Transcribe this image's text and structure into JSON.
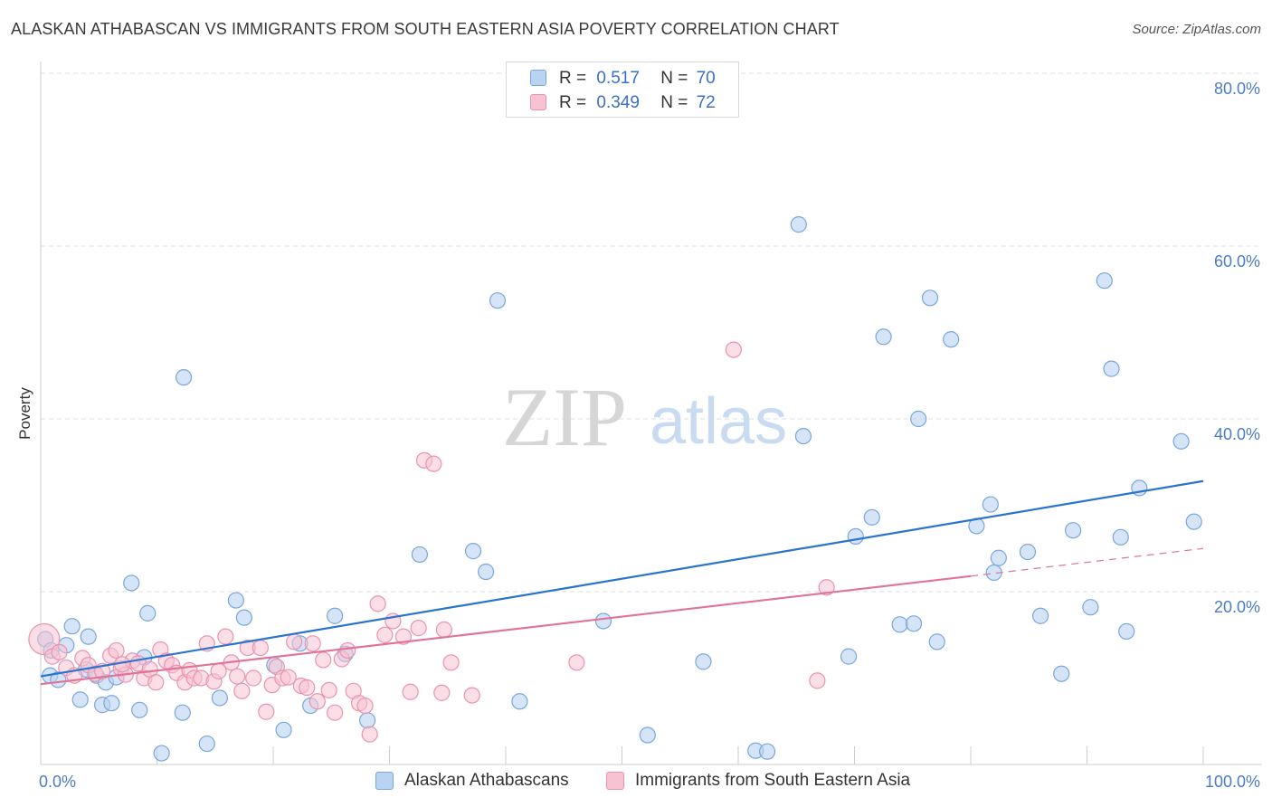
{
  "title": "ALASKAN ATHABASCAN VS IMMIGRANTS FROM SOUTH EASTERN ASIA POVERTY CORRELATION CHART",
  "source": "Source: ZipAtlas.com",
  "watermark": {
    "zip": "ZIP",
    "atlas": "atlas"
  },
  "legend": {
    "rows": [
      {
        "r_label": "R =",
        "r_value": "0.517",
        "n_label": "N =",
        "n_value": "70"
      },
      {
        "r_label": "R =",
        "r_value": "0.349",
        "n_label": "N =",
        "n_value": "72"
      }
    ]
  },
  "bottom_legend": [
    "Alaskan Athabascans",
    "Immigrants from South Eastern Asia"
  ],
  "colors": {
    "blue_fill": "#b9d3f2",
    "blue_stroke": "#7aa6dc",
    "blue_line": "#2a74d0",
    "pink_fill": "#f7c3d2",
    "pink_stroke": "#ea93ae",
    "pink_line": "#e0739a",
    "tick_text": "#4a7cc9",
    "grid": "#dddddd"
  },
  "chart_data": {
    "type": "scatter",
    "title": "ALASKAN ATHABASCAN VS IMMIGRANTS FROM SOUTH EASTERN ASIA POVERTY CORRELATION CHART",
    "xlabel": "",
    "ylabel": "Poverty",
    "xlim": [
      0,
      100
    ],
    "ylim": [
      0,
      82
    ],
    "x_tick_labels": [
      "0.0%",
      "100.0%"
    ],
    "y_ticks": [
      20,
      40,
      60,
      80
    ],
    "y_tick_labels": [
      "20.0%",
      "40.0%",
      "60.0%",
      "80.0%"
    ],
    "grid": true,
    "legend_placement": "top-center",
    "series": [
      {
        "name": "Alaskan Athabascans",
        "r": 0.517,
        "n": 70,
        "trend": {
          "x": [
            0,
            100
          ],
          "y": [
            10.2,
            32.8
          ]
        },
        "points": [
          [
            0.4,
            14.5
          ],
          [
            0.8,
            10.3
          ],
          [
            1.5,
            9.8
          ],
          [
            2.2,
            13.8
          ],
          [
            2.7,
            16.0
          ],
          [
            3.4,
            7.5
          ],
          [
            3.9,
            11.0
          ],
          [
            4.1,
            14.8
          ],
          [
            4.8,
            10.3
          ],
          [
            5.3,
            6.9
          ],
          [
            5.6,
            9.5
          ],
          [
            6.1,
            7.1
          ],
          [
            6.5,
            10.1
          ],
          [
            7.8,
            21.0
          ],
          [
            8.5,
            6.3
          ],
          [
            8.9,
            12.4
          ],
          [
            9.2,
            17.5
          ],
          [
            10.4,
            1.3
          ],
          [
            12.2,
            6.0
          ],
          [
            12.3,
            44.8
          ],
          [
            14.3,
            2.4
          ],
          [
            15.4,
            7.7
          ],
          [
            16.8,
            19.0
          ],
          [
            17.5,
            17.0
          ],
          [
            20.1,
            11.5
          ],
          [
            20.9,
            4.0
          ],
          [
            22.3,
            14.0
          ],
          [
            23.2,
            6.8
          ],
          [
            25.3,
            17.2
          ],
          [
            26.2,
            12.8
          ],
          [
            28.1,
            5.1
          ],
          [
            32.6,
            24.3
          ],
          [
            37.2,
            24.7
          ],
          [
            38.3,
            22.3
          ],
          [
            39.3,
            53.7
          ],
          [
            41.2,
            7.3
          ],
          [
            48.4,
            16.6
          ],
          [
            52.2,
            3.4
          ],
          [
            57.0,
            11.9
          ],
          [
            61.5,
            1.6
          ],
          [
            62.5,
            1.5
          ],
          [
            65.2,
            62.5
          ],
          [
            65.6,
            38.0
          ],
          [
            69.5,
            12.5
          ],
          [
            70.1,
            26.4
          ],
          [
            71.5,
            28.6
          ],
          [
            72.5,
            49.5
          ],
          [
            73.9,
            16.2
          ],
          [
            75.1,
            16.3
          ],
          [
            75.5,
            40.0
          ],
          [
            76.5,
            54.0
          ],
          [
            77.1,
            14.2
          ],
          [
            78.3,
            49.2
          ],
          [
            82.0,
            22.2
          ],
          [
            80.5,
            27.6
          ],
          [
            81.7,
            30.1
          ],
          [
            82.4,
            23.9
          ],
          [
            84.9,
            24.6
          ],
          [
            86.0,
            17.2
          ],
          [
            87.8,
            10.5
          ],
          [
            88.8,
            27.1
          ],
          [
            90.3,
            18.2
          ],
          [
            91.5,
            56.0
          ],
          [
            92.1,
            45.8
          ],
          [
            92.9,
            26.3
          ],
          [
            93.4,
            15.4
          ],
          [
            94.5,
            32.0
          ],
          [
            98.1,
            37.4
          ],
          [
            99.2,
            28.1
          ],
          [
            0.9,
            13.2
          ]
        ]
      },
      {
        "name": "Immigrants from South Eastern Asia",
        "r": 0.349,
        "n": 72,
        "trend": {
          "x": [
            0,
            80
          ],
          "y": [
            9.3,
            21.8
          ]
        },
        "trend_dashed": {
          "x": [
            80,
            100
          ],
          "y": [
            21.8,
            25.0
          ]
        },
        "points": [
          [
            0.3,
            14.5
          ],
          [
            1.0,
            12.5
          ],
          [
            1.6,
            13.0
          ],
          [
            2.2,
            11.2
          ],
          [
            2.9,
            10.3
          ],
          [
            3.6,
            12.3
          ],
          [
            4.1,
            11.5
          ],
          [
            4.7,
            10.5
          ],
          [
            5.3,
            10.8
          ],
          [
            6.0,
            12.6
          ],
          [
            6.5,
            13.2
          ],
          [
            6.9,
            11.1
          ],
          [
            7.3,
            10.4
          ],
          [
            7.9,
            12.0
          ],
          [
            8.4,
            11.7
          ],
          [
            8.9,
            10.0
          ],
          [
            9.4,
            11.0
          ],
          [
            9.9,
            9.5
          ],
          [
            10.3,
            13.3
          ],
          [
            10.8,
            12.0
          ],
          [
            11.3,
            11.5
          ],
          [
            11.7,
            10.6
          ],
          [
            12.4,
            9.5
          ],
          [
            12.8,
            10.9
          ],
          [
            13.2,
            10.0
          ],
          [
            13.8,
            10.0
          ],
          [
            14.3,
            14.0
          ],
          [
            14.9,
            9.6
          ],
          [
            15.3,
            10.8
          ],
          [
            15.9,
            14.8
          ],
          [
            16.4,
            11.8
          ],
          [
            16.9,
            10.2
          ],
          [
            17.3,
            8.5
          ],
          [
            17.8,
            13.5
          ],
          [
            18.3,
            10.0
          ],
          [
            18.9,
            13.5
          ],
          [
            19.4,
            6.1
          ],
          [
            19.9,
            9.2
          ],
          [
            20.3,
            11.3
          ],
          [
            20.8,
            10.0
          ],
          [
            21.3,
            10.1
          ],
          [
            21.8,
            14.2
          ],
          [
            22.4,
            9.1
          ],
          [
            22.9,
            8.9
          ],
          [
            23.4,
            14.0
          ],
          [
            23.8,
            7.3
          ],
          [
            24.3,
            12.1
          ],
          [
            24.8,
            8.6
          ],
          [
            25.3,
            6.0
          ],
          [
            25.9,
            12.2
          ],
          [
            26.4,
            13.2
          ],
          [
            26.9,
            8.5
          ],
          [
            27.4,
            7.1
          ],
          [
            27.9,
            6.8
          ],
          [
            28.3,
            3.5
          ],
          [
            29.0,
            18.6
          ],
          [
            29.6,
            15.0
          ],
          [
            30.3,
            16.6
          ],
          [
            31.2,
            14.8
          ],
          [
            31.8,
            8.4
          ],
          [
            32.5,
            15.8
          ],
          [
            33.0,
            35.2
          ],
          [
            33.8,
            34.8
          ],
          [
            34.5,
            8.3
          ],
          [
            34.7,
            15.6
          ],
          [
            35.3,
            11.8
          ],
          [
            37.1,
            8.0
          ],
          [
            46.1,
            11.8
          ],
          [
            66.8,
            9.7
          ],
          [
            67.6,
            20.5
          ],
          [
            59.6,
            48.0
          ],
          [
            7.0,
            11.6
          ]
        ]
      }
    ]
  }
}
